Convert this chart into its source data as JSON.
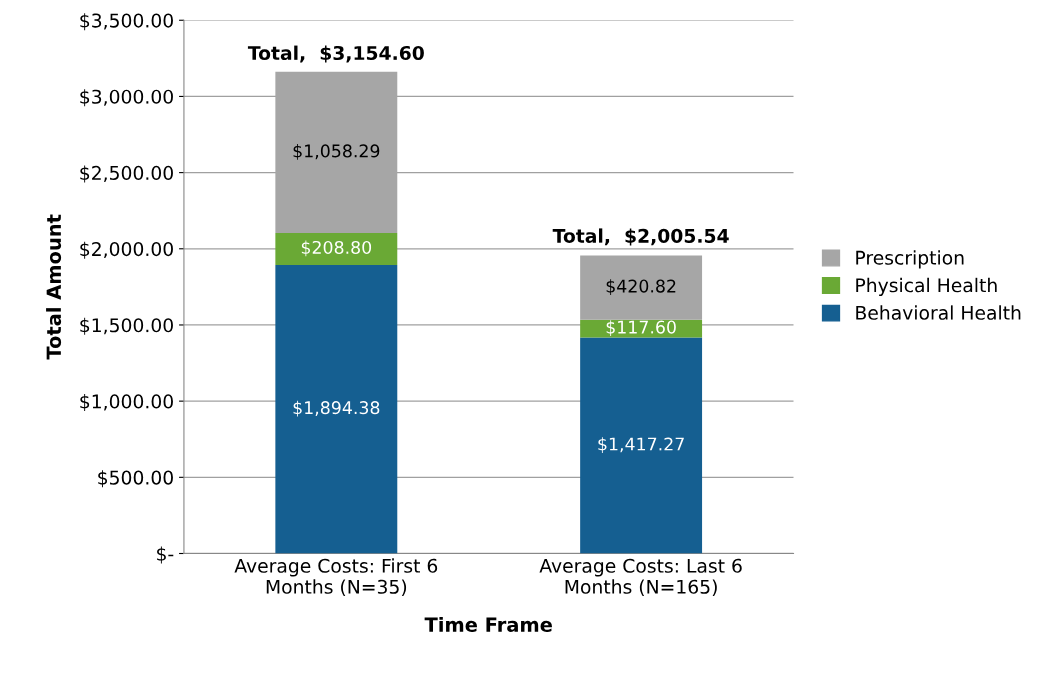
{
  "chart_data": {
    "type": "bar",
    "stacked": true,
    "xlabel": "Time Frame",
    "ylabel": "Total Amount",
    "categories": [
      "Average Costs: First 6\nMonths (N=35)",
      "Average Costs: Last 6\nMonths (N=165)"
    ],
    "series": [
      {
        "name": "Behavioral Health",
        "color": "#155f91",
        "values": [
          1894.38,
          1417.27
        ],
        "value_labels": [
          "$1,894.38",
          "$1,417.27"
        ]
      },
      {
        "name": "Physical Health",
        "color": "#6aa935",
        "values": [
          208.8,
          117.6
        ],
        "value_labels": [
          "$208.80",
          "$117.60"
        ]
      },
      {
        "name": "Prescription",
        "color": "#a6a6a6",
        "values": [
          1058.29,
          420.82
        ],
        "value_labels": [
          "$1,058.29",
          "$420.82"
        ]
      }
    ],
    "annotations": [
      {
        "text": "Total,  $3,154.60",
        "x": "Average Costs: First 6\nMonths (N=35)",
        "y": 3160
      },
      {
        "text": "Total,  $2,005.54",
        "x": "Average Costs: Last 6\nMonths (N=165)",
        "y": 1960
      }
    ],
    "ylim": [
      0,
      3500
    ],
    "yticks": [
      {
        "value": 0,
        "label": "$-"
      },
      {
        "value": 500,
        "label": "$500.00"
      },
      {
        "value": 1000,
        "label": "$1,000.00"
      },
      {
        "value": 1500,
        "label": "$1,500.00"
      },
      {
        "value": 2000,
        "label": "$2,000.00"
      },
      {
        "value": 2500,
        "label": "$2,500.00"
      },
      {
        "value": 3000,
        "label": "$3,000.00"
      },
      {
        "value": 3500,
        "label": "$3,500.00"
      }
    ],
    "grid": "y",
    "legend": "right"
  }
}
